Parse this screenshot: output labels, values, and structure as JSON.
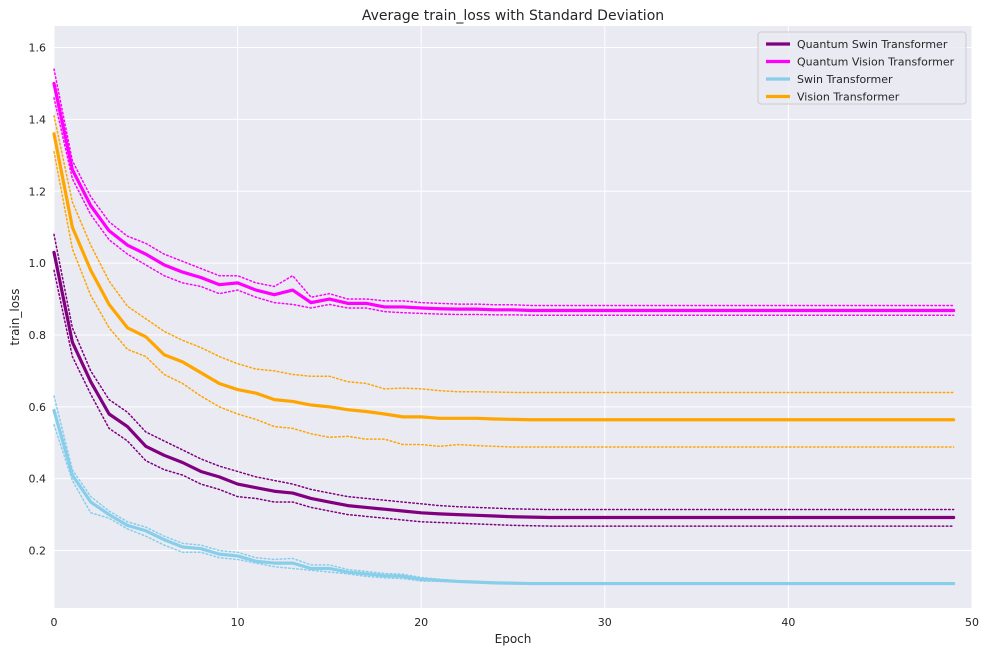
{
  "chart_data": {
    "type": "line",
    "title": "Average train_loss with Standard Deviation",
    "xlabel": "Epoch",
    "ylabel": "train_loss",
    "xlim": [
      0,
      50
    ],
    "ylim": [
      0.04,
      1.66
    ],
    "xticks": [
      0,
      10,
      20,
      30,
      40,
      50
    ],
    "xtick_labels": [
      "0",
      "10",
      "20",
      "30",
      "40",
      "50"
    ],
    "yticks": [
      0.2,
      0.4,
      0.6,
      0.8,
      1.0,
      1.2,
      1.4,
      1.6
    ],
    "ytick_labels": [
      "0.2",
      "0.4",
      "0.6",
      "0.8",
      "1.0",
      "1.2",
      "1.4",
      "1.6"
    ],
    "grid": true,
    "legend_position": "top-right",
    "x": [
      0,
      1,
      2,
      3,
      4,
      5,
      6,
      7,
      8,
      9,
      10,
      11,
      12,
      13,
      14,
      15,
      16,
      17,
      18,
      19,
      20,
      21,
      22,
      23,
      24,
      25,
      26,
      27,
      28,
      29,
      30,
      31,
      32,
      33,
      34,
      35,
      36,
      37,
      38,
      39,
      40,
      41,
      42,
      43,
      44,
      45,
      46,
      47,
      48,
      49
    ],
    "series": [
      {
        "name": "Quantum Swin Transformer",
        "color": "#800080",
        "values": [
          1.03,
          0.78,
          0.67,
          0.58,
          0.545,
          0.49,
          0.465,
          0.445,
          0.42,
          0.405,
          0.385,
          0.375,
          0.365,
          0.36,
          0.345,
          0.335,
          0.325,
          0.32,
          0.315,
          0.31,
          0.305,
          0.302,
          0.3,
          0.298,
          0.296,
          0.294,
          0.293,
          0.292,
          0.292,
          0.292,
          0.292,
          0.292,
          0.292,
          0.292,
          0.292,
          0.292,
          0.292,
          0.292,
          0.292,
          0.292,
          0.292,
          0.292,
          0.292,
          0.292,
          0.292,
          0.292,
          0.292,
          0.292,
          0.292,
          0.292
        ],
        "upper": [
          1.08,
          0.82,
          0.7,
          0.62,
          0.585,
          0.53,
          0.505,
          0.48,
          0.455,
          0.435,
          0.42,
          0.405,
          0.395,
          0.385,
          0.37,
          0.36,
          0.35,
          0.345,
          0.34,
          0.335,
          0.33,
          0.325,
          0.322,
          0.32,
          0.318,
          0.316,
          0.315,
          0.314,
          0.314,
          0.314,
          0.314,
          0.314,
          0.314,
          0.314,
          0.314,
          0.314,
          0.314,
          0.314,
          0.314,
          0.314,
          0.314,
          0.314,
          0.314,
          0.314,
          0.314,
          0.314,
          0.314,
          0.314,
          0.314,
          0.314
        ],
        "lower": [
          0.98,
          0.74,
          0.635,
          0.54,
          0.505,
          0.45,
          0.425,
          0.41,
          0.385,
          0.37,
          0.35,
          0.345,
          0.335,
          0.335,
          0.32,
          0.31,
          0.3,
          0.295,
          0.29,
          0.285,
          0.28,
          0.278,
          0.276,
          0.274,
          0.272,
          0.27,
          0.269,
          0.268,
          0.268,
          0.268,
          0.268,
          0.268,
          0.268,
          0.268,
          0.268,
          0.268,
          0.268,
          0.268,
          0.268,
          0.268,
          0.268,
          0.268,
          0.268,
          0.268,
          0.268,
          0.268,
          0.268,
          0.268,
          0.268,
          0.268
        ]
      },
      {
        "name": "Quantum Vision Transformer",
        "color": "#ff00ff",
        "values": [
          1.5,
          1.26,
          1.16,
          1.09,
          1.05,
          1.025,
          0.995,
          0.975,
          0.96,
          0.94,
          0.945,
          0.925,
          0.912,
          0.925,
          0.89,
          0.9,
          0.888,
          0.888,
          0.878,
          0.878,
          0.875,
          0.873,
          0.872,
          0.872,
          0.87,
          0.87,
          0.868,
          0.868,
          0.868,
          0.868,
          0.868,
          0.868,
          0.868,
          0.868,
          0.868,
          0.868,
          0.868,
          0.868,
          0.868,
          0.868,
          0.868,
          0.868,
          0.868,
          0.868,
          0.868,
          0.868,
          0.868,
          0.868,
          0.868,
          0.868
        ],
        "upper": [
          1.54,
          1.285,
          1.185,
          1.115,
          1.075,
          1.055,
          1.025,
          1.005,
          0.985,
          0.965,
          0.965,
          0.945,
          0.935,
          0.965,
          0.905,
          0.915,
          0.9,
          0.9,
          0.895,
          0.895,
          0.89,
          0.888,
          0.886,
          0.886,
          0.884,
          0.884,
          0.882,
          0.882,
          0.882,
          0.882,
          0.882,
          0.882,
          0.882,
          0.882,
          0.882,
          0.882,
          0.882,
          0.882,
          0.882,
          0.882,
          0.882,
          0.882,
          0.882,
          0.882,
          0.882,
          0.882,
          0.882,
          0.882,
          0.882,
          0.882
        ],
        "lower": [
          1.46,
          1.235,
          1.135,
          1.065,
          1.025,
          0.995,
          0.965,
          0.945,
          0.935,
          0.915,
          0.925,
          0.905,
          0.89,
          0.885,
          0.875,
          0.885,
          0.875,
          0.875,
          0.865,
          0.862,
          0.86,
          0.858,
          0.857,
          0.857,
          0.856,
          0.856,
          0.855,
          0.855,
          0.855,
          0.855,
          0.855,
          0.855,
          0.855,
          0.855,
          0.855,
          0.855,
          0.855,
          0.855,
          0.855,
          0.855,
          0.855,
          0.855,
          0.855,
          0.855,
          0.855,
          0.855,
          0.855,
          0.855,
          0.855,
          0.855
        ]
      },
      {
        "name": "Swin Transformer",
        "color": "#87ceeb",
        "values": [
          0.59,
          0.41,
          0.335,
          0.3,
          0.27,
          0.255,
          0.23,
          0.21,
          0.205,
          0.19,
          0.185,
          0.17,
          0.165,
          0.165,
          0.15,
          0.15,
          0.14,
          0.135,
          0.13,
          0.128,
          0.12,
          0.117,
          0.114,
          0.112,
          0.11,
          0.109,
          0.108,
          0.108,
          0.108,
          0.108,
          0.108,
          0.108,
          0.108,
          0.108,
          0.108,
          0.108,
          0.108,
          0.108,
          0.108,
          0.108,
          0.108,
          0.108,
          0.108,
          0.108,
          0.108,
          0.108,
          0.108,
          0.108,
          0.108,
          0.108
        ],
        "upper": [
          0.63,
          0.425,
          0.35,
          0.31,
          0.28,
          0.265,
          0.24,
          0.22,
          0.215,
          0.2,
          0.195,
          0.18,
          0.175,
          0.178,
          0.16,
          0.16,
          0.147,
          0.142,
          0.136,
          0.134,
          0.125,
          0.12,
          0.116,
          0.114,
          0.112,
          0.111,
          0.11,
          0.11,
          0.11,
          0.11,
          0.11,
          0.11,
          0.11,
          0.11,
          0.11,
          0.11,
          0.11,
          0.11,
          0.11,
          0.11,
          0.11,
          0.11,
          0.11,
          0.11,
          0.11,
          0.11,
          0.11,
          0.11,
          0.11,
          0.11
        ],
        "lower": [
          0.55,
          0.395,
          0.305,
          0.29,
          0.26,
          0.24,
          0.215,
          0.195,
          0.195,
          0.18,
          0.175,
          0.165,
          0.155,
          0.15,
          0.145,
          0.14,
          0.135,
          0.128,
          0.124,
          0.122,
          0.115,
          0.114,
          0.112,
          0.11,
          0.108,
          0.107,
          0.106,
          0.106,
          0.106,
          0.106,
          0.106,
          0.106,
          0.106,
          0.106,
          0.106,
          0.106,
          0.106,
          0.106,
          0.106,
          0.106,
          0.106,
          0.106,
          0.106,
          0.106,
          0.106,
          0.106,
          0.106,
          0.106,
          0.106,
          0.106
        ]
      },
      {
        "name": "Vision Transformer",
        "color": "#ffa500",
        "values": [
          1.36,
          1.1,
          0.98,
          0.885,
          0.82,
          0.795,
          0.745,
          0.725,
          0.695,
          0.665,
          0.648,
          0.638,
          0.62,
          0.615,
          0.605,
          0.6,
          0.592,
          0.587,
          0.58,
          0.572,
          0.572,
          0.568,
          0.568,
          0.568,
          0.566,
          0.565,
          0.564,
          0.564,
          0.564,
          0.564,
          0.564,
          0.564,
          0.564,
          0.564,
          0.564,
          0.564,
          0.564,
          0.564,
          0.564,
          0.564,
          0.564,
          0.564,
          0.564,
          0.564,
          0.564,
          0.564,
          0.564,
          0.564,
          0.564,
          0.564
        ],
        "upper": [
          1.41,
          1.17,
          1.05,
          0.95,
          0.88,
          0.845,
          0.81,
          0.785,
          0.765,
          0.74,
          0.72,
          0.705,
          0.7,
          0.69,
          0.685,
          0.685,
          0.67,
          0.665,
          0.65,
          0.652,
          0.65,
          0.645,
          0.642,
          0.642,
          0.641,
          0.64,
          0.64,
          0.64,
          0.64,
          0.64,
          0.64,
          0.64,
          0.64,
          0.64,
          0.64,
          0.64,
          0.64,
          0.64,
          0.64,
          0.64,
          0.64,
          0.64,
          0.64,
          0.64,
          0.64,
          0.64,
          0.64,
          0.64,
          0.64,
          0.64
        ],
        "lower": [
          1.31,
          1.04,
          0.91,
          0.82,
          0.76,
          0.74,
          0.69,
          0.665,
          0.63,
          0.6,
          0.58,
          0.565,
          0.545,
          0.54,
          0.525,
          0.515,
          0.518,
          0.51,
          0.51,
          0.495,
          0.495,
          0.49,
          0.495,
          0.492,
          0.49,
          0.488,
          0.488,
          0.488,
          0.488,
          0.488,
          0.488,
          0.488,
          0.488,
          0.488,
          0.488,
          0.488,
          0.488,
          0.488,
          0.488,
          0.488,
          0.488,
          0.488,
          0.488,
          0.488,
          0.488,
          0.488,
          0.488,
          0.488,
          0.488,
          0.488
        ]
      }
    ]
  }
}
